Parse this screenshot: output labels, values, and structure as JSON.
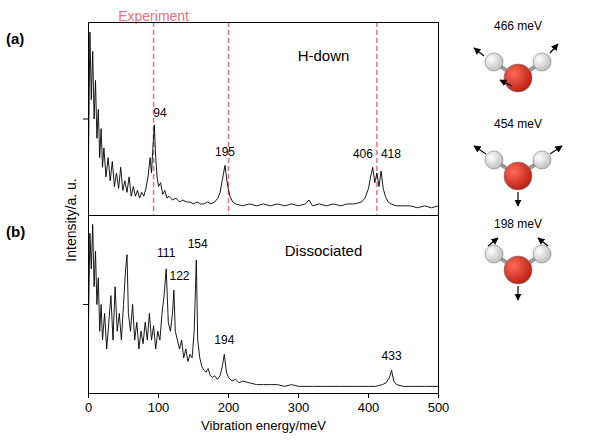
{
  "chart_data": [
    {
      "type": "line",
      "panel": "(a)",
      "title": "H-down",
      "color": "#000000",
      "x": [
        0,
        2,
        4,
        6,
        8,
        10,
        12,
        14,
        16,
        18,
        20,
        22,
        25,
        28,
        31,
        34,
        37,
        40,
        43,
        46,
        49,
        52,
        55,
        58,
        61,
        64,
        67,
        70,
        73,
        76,
        79,
        82,
        85,
        88,
        90,
        92,
        94,
        96,
        98,
        100,
        103,
        106,
        109,
        112,
        115,
        120,
        125,
        130,
        135,
        140,
        145,
        150,
        155,
        160,
        165,
        170,
        175,
        180,
        185,
        188,
        191,
        193,
        195,
        197,
        199,
        202,
        206,
        210,
        220,
        230,
        240,
        250,
        260,
        270,
        280,
        290,
        300,
        310,
        315,
        320,
        330,
        340,
        350,
        360,
        370,
        380,
        390,
        395,
        400,
        403,
        406,
        409,
        412,
        415,
        418,
        421,
        424,
        428,
        432,
        440,
        450,
        460,
        470,
        480,
        490,
        500
      ],
      "values": [
        0.3,
        0.95,
        0.6,
        0.85,
        0.5,
        0.7,
        0.4,
        0.55,
        0.3,
        0.45,
        0.25,
        0.35,
        0.2,
        0.3,
        0.18,
        0.28,
        0.15,
        0.22,
        0.14,
        0.25,
        0.13,
        0.18,
        0.12,
        0.2,
        0.1,
        0.15,
        0.1,
        0.13,
        0.09,
        0.12,
        0.1,
        0.14,
        0.2,
        0.3,
        0.22,
        0.35,
        0.47,
        0.3,
        0.2,
        0.15,
        0.17,
        0.11,
        0.13,
        0.09,
        0.1,
        0.08,
        0.09,
        0.07,
        0.08,
        0.07,
        0.07,
        0.06,
        0.07,
        0.06,
        0.06,
        0.07,
        0.06,
        0.07,
        0.09,
        0.12,
        0.18,
        0.22,
        0.26,
        0.2,
        0.15,
        0.1,
        0.07,
        0.06,
        0.05,
        0.06,
        0.05,
        0.06,
        0.05,
        0.06,
        0.05,
        0.06,
        0.05,
        0.06,
        0.08,
        0.05,
        0.06,
        0.05,
        0.06,
        0.05,
        0.06,
        0.06,
        0.07,
        0.09,
        0.14,
        0.2,
        0.25,
        0.17,
        0.22,
        0.15,
        0.23,
        0.14,
        0.1,
        0.07,
        0.06,
        0.05,
        0.05,
        0.05,
        0.04,
        0.05,
        0.04,
        0.05
      ],
      "xlim": [
        0,
        500
      ],
      "xticks": [
        0,
        100,
        200,
        300,
        400,
        500
      ],
      "ylim": [
        0,
        1
      ],
      "yticks": [
        0.5
      ],
      "tick_labels": false,
      "reference_lines": {
        "label": "Experiment",
        "x": [
          93,
          200,
          412
        ],
        "color": "#e8707e",
        "line_style": "dashed"
      },
      "annotations": [
        {
          "text": "94",
          "x": 102,
          "y": 0.53
        },
        {
          "text": "195",
          "x": 195,
          "y": 0.33
        },
        {
          "text": "406",
          "x": 392,
          "y": 0.32
        },
        {
          "text": "418",
          "x": 432,
          "y": 0.32
        }
      ]
    },
    {
      "type": "line",
      "panel": "(b)",
      "title": "Dissociated",
      "color": "#000000",
      "x": [
        0,
        2,
        4,
        6,
        8,
        10,
        12,
        14,
        16,
        18,
        20,
        23,
        26,
        29,
        32,
        35,
        38,
        41,
        44,
        47,
        50,
        53,
        55,
        57,
        60,
        63,
        66,
        69,
        72,
        75,
        78,
        81,
        84,
        87,
        90,
        93,
        96,
        99,
        102,
        105,
        108,
        111,
        114,
        117,
        120,
        122,
        124,
        127,
        130,
        133,
        136,
        139,
        142,
        145,
        148,
        151,
        154,
        156,
        159,
        162,
        165,
        168,
        171,
        174,
        177,
        180,
        184,
        188,
        191,
        194,
        197,
        200,
        205,
        210,
        215,
        220,
        230,
        240,
        250,
        260,
        270,
        280,
        290,
        300,
        320,
        340,
        360,
        380,
        400,
        410,
        420,
        425,
        430,
        433,
        436,
        440,
        450,
        460,
        480,
        500
      ],
      "values": [
        0.4,
        0.9,
        0.7,
        0.95,
        0.6,
        0.8,
        0.5,
        0.65,
        0.35,
        0.5,
        0.3,
        0.45,
        0.25,
        0.4,
        0.55,
        0.3,
        0.6,
        0.35,
        0.45,
        0.3,
        0.5,
        0.7,
        0.78,
        0.45,
        0.35,
        0.5,
        0.3,
        0.4,
        0.25,
        0.35,
        0.28,
        0.4,
        0.3,
        0.45,
        0.3,
        0.38,
        0.25,
        0.35,
        0.3,
        0.45,
        0.55,
        0.7,
        0.4,
        0.35,
        0.45,
        0.58,
        0.35,
        0.3,
        0.25,
        0.3,
        0.2,
        0.25,
        0.18,
        0.22,
        0.2,
        0.35,
        0.75,
        0.3,
        0.2,
        0.15,
        0.13,
        0.12,
        0.14,
        0.1,
        0.09,
        0.1,
        0.08,
        0.1,
        0.15,
        0.22,
        0.12,
        0.09,
        0.07,
        0.08,
        0.06,
        0.07,
        0.06,
        0.05,
        0.05,
        0.05,
        0.05,
        0.04,
        0.05,
        0.04,
        0.04,
        0.04,
        0.04,
        0.04,
        0.04,
        0.04,
        0.05,
        0.06,
        0.09,
        0.13,
        0.07,
        0.05,
        0.04,
        0.04,
        0.04,
        0.04
      ],
      "xlim": [
        0,
        500
      ],
      "xticks": [
        0,
        100,
        200,
        300,
        400,
        500
      ],
      "ylim": [
        0,
        1
      ],
      "yticks": [
        0.5
      ],
      "tick_labels": "x",
      "x_label": "Vibration energy/meV",
      "annotations": [
        {
          "text": "111",
          "x": 111,
          "y": 0.79
        },
        {
          "text": "122",
          "x": 130,
          "y": 0.66
        },
        {
          "text": "154",
          "x": 156,
          "y": 0.84
        },
        {
          "text": "194",
          "x": 194,
          "y": 0.3
        },
        {
          "text": "433",
          "x": 433,
          "y": 0.21
        }
      ]
    }
  ],
  "y_label": "Intensity/a. u.",
  "modes": [
    "466 meV",
    "454 meV",
    "198 meV"
  ]
}
